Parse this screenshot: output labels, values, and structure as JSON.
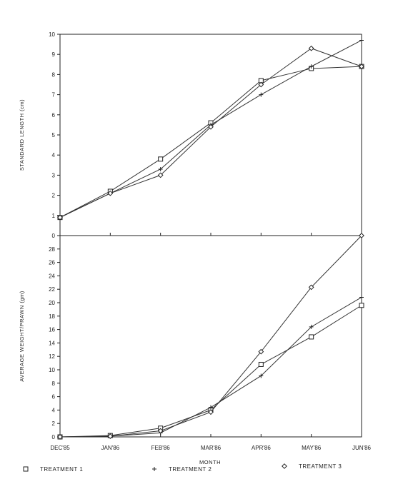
{
  "chart_data": [
    {
      "type": "line",
      "ylabel": "STANDARD LENGTH (cm)",
      "ylim": [
        0,
        10
      ],
      "yticks": [
        0,
        1,
        2,
        3,
        4,
        5,
        6,
        7,
        8,
        9,
        10
      ],
      "categories": [
        "DEC'85",
        "JAN'86",
        "FEB'86",
        "MAR'86",
        "APR'86",
        "MAY'86",
        "JUN'86"
      ],
      "series": [
        {
          "name": "TREATMENT 1",
          "marker": "square",
          "values": [
            0.9,
            2.2,
            3.8,
            5.6,
            7.7,
            8.3,
            8.4
          ]
        },
        {
          "name": "TREATMENT 2",
          "marker": "plus",
          "values": [
            0.9,
            2.1,
            3.3,
            5.5,
            7.0,
            8.4,
            9.7
          ]
        },
        {
          "name": "TREATMENT 3",
          "marker": "diamond",
          "values": [
            0.9,
            2.1,
            3.0,
            5.4,
            7.5,
            9.3,
            8.4
          ]
        }
      ]
    },
    {
      "type": "line",
      "ylabel": "AVERAGE WEIGHT/PRAWN (gm)",
      "ylim": [
        0,
        30
      ],
      "yticks": [
        0,
        2,
        4,
        6,
        8,
        10,
        12,
        14,
        16,
        18,
        20,
        22,
        24,
        26,
        28
      ],
      "xlabel": "MONTH",
      "categories": [
        "DEC'85",
        "JAN'86",
        "FEB'86",
        "MAR'86",
        "APR'86",
        "MAY'86",
        "JUN'86"
      ],
      "series": [
        {
          "name": "TREATMENT 1",
          "marker": "square",
          "values": [
            0.0,
            0.2,
            1.3,
            4.0,
            10.8,
            14.9,
            19.6
          ]
        },
        {
          "name": "TREATMENT 2",
          "marker": "plus",
          "values": [
            0.0,
            0.1,
            0.6,
            4.4,
            9.1,
            16.4,
            20.8
          ]
        },
        {
          "name": "TREATMENT 3",
          "marker": "diamond",
          "values": [
            0.0,
            0.1,
            0.9,
            3.7,
            12.7,
            22.3,
            30.0
          ]
        }
      ]
    }
  ],
  "legend": {
    "items": [
      {
        "symbol": "square",
        "label": "TREATMENT 1"
      },
      {
        "symbol": "plus",
        "label": "TREATMENT 2"
      },
      {
        "symbol": "diamond",
        "label": "TREATMENT 3"
      }
    ]
  }
}
